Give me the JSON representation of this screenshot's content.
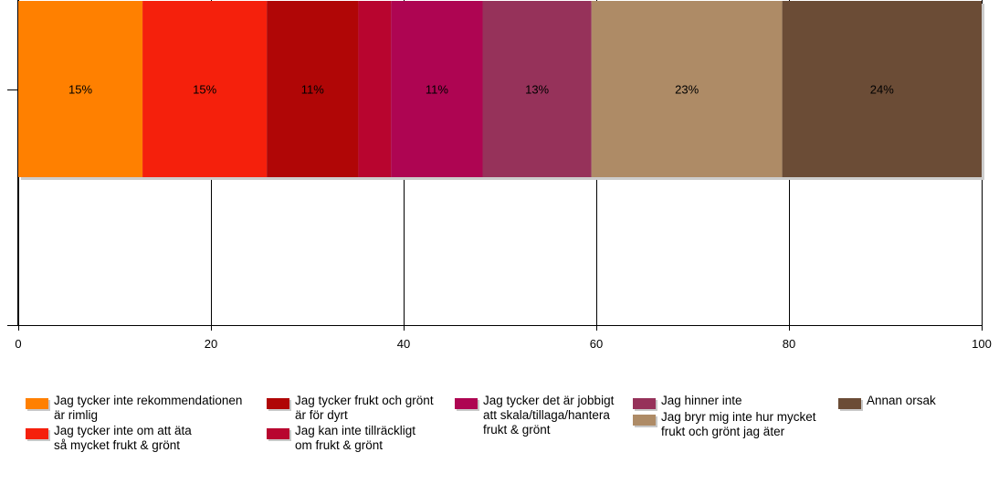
{
  "chart_data": {
    "type": "bar",
    "orientation": "horizontal-stacked",
    "xlim": [
      0,
      100
    ],
    "x_ticks": [
      "0",
      "20",
      "40",
      "60",
      "80",
      "100"
    ],
    "grid": true,
    "legend_position": "bottom",
    "series": [
      {
        "name": "Jag tycker inte rekommendationen\när rimlig",
        "value": 12.9,
        "label": "15%",
        "color": "#ff8000"
      },
      {
        "name": "Jag tycker inte om att äta\nså mycket frukt & grönt",
        "value": 12.9,
        "label": "15%",
        "color": "#f5200c"
      },
      {
        "name": "Jag tycker frukt och grönt\när för dyrt",
        "value": 9.5,
        "label": "11%",
        "color": "#b00606"
      },
      {
        "name": "Jag kan inte tillräckligt\nom frukt & grönt",
        "value": 3.4,
        "label": "",
        "color": "#b8052f"
      },
      {
        "name": "Jag tycker det är jobbigt\natt skala/tillaga/hantera\nfrukt & grönt",
        "value": 9.5,
        "label": "11%",
        "color": "#ae0552"
      },
      {
        "name": "Jag hinner inte",
        "value": 11.3,
        "label": "13%",
        "color": "#96325a"
      },
      {
        "name": "Jag bryr mig inte hur mycket\nfrukt och grönt jag äter",
        "value": 19.8,
        "label": "23%",
        "color": "#ae8b66"
      },
      {
        "name": "Annan orsak",
        "value": 20.7,
        "label": "24%",
        "color": "#6b4c36"
      }
    ]
  }
}
